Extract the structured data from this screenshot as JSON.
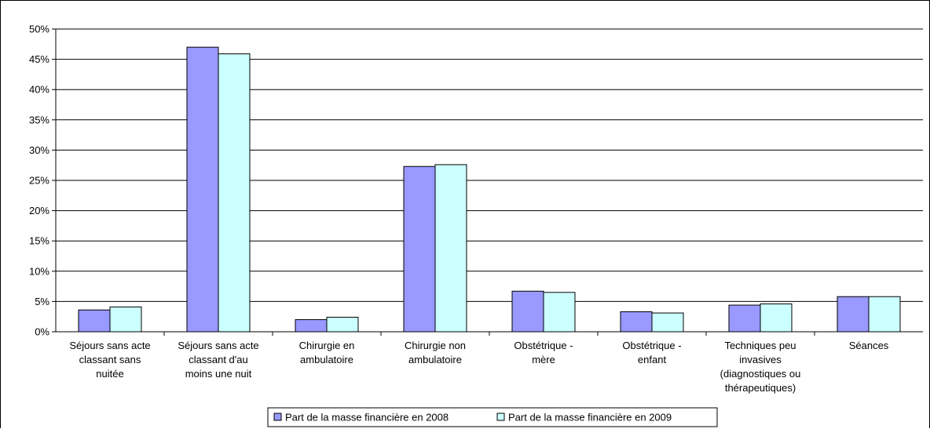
{
  "chart_data": {
    "type": "bar",
    "categories": [
      [
        "Séjours sans acte",
        "classant sans",
        "nuitée"
      ],
      [
        "Séjours sans acte",
        "classant d'au",
        "moins une nuit"
      ],
      [
        "Chirurgie en",
        "ambulatoire"
      ],
      [
        "Chirurgie non",
        "ambulatoire"
      ],
      [
        "Obstétrique -",
        "mère"
      ],
      [
        "Obstétrique -",
        "enfant"
      ],
      [
        "Techniques peu",
        "invasives",
        "(diagnostiques ou",
        "thérapeutiques)"
      ],
      [
        "Séances"
      ]
    ],
    "series": [
      {
        "name": "Part de la masse financière en 2008",
        "color": "#9999ff",
        "values": [
          3.6,
          47.0,
          2.0,
          27.3,
          6.7,
          3.3,
          4.4,
          5.8
        ]
      },
      {
        "name": "Part de la masse financière en 2009",
        "color": "#ccffff",
        "values": [
          4.1,
          45.9,
          2.4,
          27.6,
          6.5,
          3.1,
          4.6,
          5.8
        ]
      }
    ],
    "ylim": [
      0,
      50
    ],
    "yticks": [
      "0%",
      "5%",
      "10%",
      "15%",
      "20%",
      "25%",
      "30%",
      "35%",
      "40%",
      "45%",
      "50%"
    ],
    "grid": true,
    "legend_position": "bottom"
  }
}
